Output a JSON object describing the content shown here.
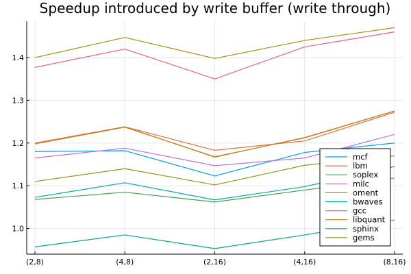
{
  "chart_data": {
    "type": "line",
    "title": "Speedup introduced by write buffer (write through)",
    "xlabel": "",
    "ylabel": "",
    "categories": [
      "(2,8)",
      "(4,8)",
      "(2,16)",
      "(4,16)",
      "(8,16)"
    ],
    "ylim": [
      0.94,
      1.485
    ],
    "yticks": [
      1.0,
      1.1,
      1.2,
      1.3,
      1.4
    ],
    "ytick_labels": [
      "1.0",
      "1.1",
      "1.2",
      "1.3",
      "1.4"
    ],
    "grid": true,
    "legend_position": "bottom-right",
    "series": [
      {
        "name": "mcf",
        "color": "#009AFA",
        "values": [
          1.18,
          1.182,
          1.123,
          1.178,
          1.2
        ]
      },
      {
        "name": "lbm",
        "color": "#E26F46",
        "values": [
          1.2,
          1.238,
          1.183,
          1.205,
          1.272
        ]
      },
      {
        "name": "soplex",
        "color": "#3EA44E",
        "values": [
          1.068,
          1.085,
          1.062,
          1.09,
          1.118
        ]
      },
      {
        "name": "milc",
        "color": "#C271D2",
        "values": [
          1.165,
          1.188,
          1.147,
          1.165,
          1.22
        ]
      },
      {
        "name": "oment",
        "color": "#AC8D18",
        "values": [
          1.198,
          1.237,
          1.168,
          1.212,
          1.275
        ]
      },
      {
        "name": "bwaves",
        "color": "#00A9AD",
        "values": [
          1.073,
          1.107,
          1.067,
          1.098,
          1.145
        ]
      },
      {
        "name": "gcc",
        "color": "#ED5D92",
        "values": [
          1.377,
          1.42,
          1.35,
          1.425,
          1.46
        ]
      },
      {
        "name": "libquant",
        "color": "#C68125",
        "values": [
          1.198,
          1.238,
          1.167,
          1.213,
          1.275
        ]
      },
      {
        "name": "sphinx",
        "color": "#00A98D",
        "values": [
          0.957,
          0.985,
          0.953,
          0.985,
          1.02
        ]
      },
      {
        "name": "gems",
        "color": "#8E971D",
        "values": [
          1.11,
          1.14,
          1.102,
          1.148,
          1.17
        ]
      },
      {
        "name": "",
        "color": "#AC8D18",
        "values": [
          1.4,
          1.447,
          1.398,
          1.44,
          1.47
        ]
      }
    ]
  }
}
